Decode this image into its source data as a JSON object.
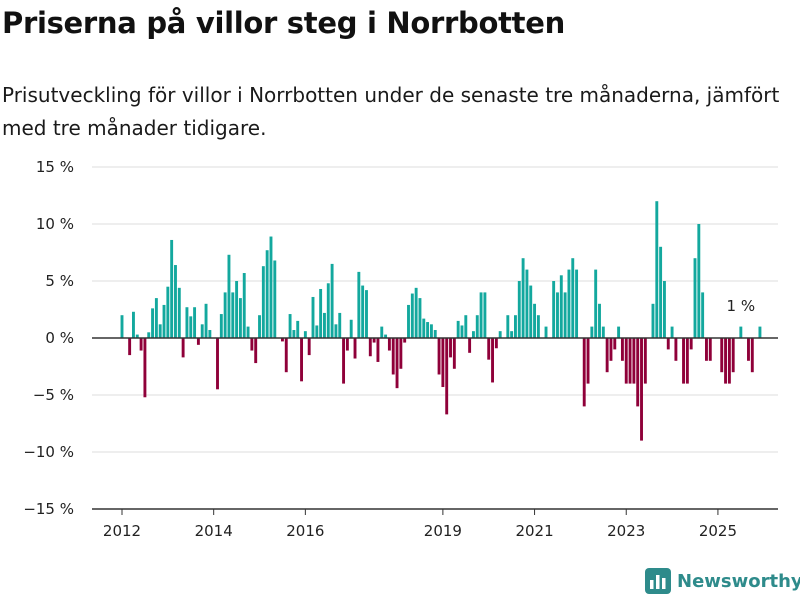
{
  "title": "Priserna på villor steg i Norrbotten",
  "subtitle": "Prisutveckling för villor i Norrbotten under de senaste tre månaderna, jämfört med tre månader tidigare.",
  "colors": {
    "positive": "#13a89e",
    "negative": "#8f0039",
    "axis": "#333333",
    "grid": "#dddddd",
    "brand": "#2e8b8b"
  },
  "brand": {
    "name": "Newsworthy",
    "icon": "bar-chart-icon"
  },
  "chart_data": {
    "type": "bar",
    "ylim": [
      -15,
      15
    ],
    "y_ticks": [
      15,
      10,
      5,
      0,
      -5,
      -10,
      -15
    ],
    "y_tick_labels": [
      "15 %",
      "10 %",
      "5 %",
      "0 %",
      "−5 %",
      "−10 %",
      "−15 %"
    ],
    "x_ticks": [
      "2012",
      "2014",
      "2016",
      "2019",
      "2021",
      "2023",
      "2025"
    ],
    "start": "2012-01",
    "x_tick_positions": [
      "2012-01",
      "2014-01",
      "2016-01",
      "2019-01",
      "2021-01",
      "2023-01",
      "2025-01"
    ],
    "grid": true,
    "annotation": {
      "text": "1 %",
      "at": "2025-07"
    },
    "values": [
      2,
      0,
      -1.5,
      2.3,
      0.3,
      -1.1,
      -5.2,
      0.5,
      2.6,
      3.5,
      1.2,
      2.9,
      4.5,
      8.6,
      6.4,
      4.4,
      -1.7,
      2.7,
      1.9,
      2.7,
      -0.6,
      1.2,
      3,
      0.7,
      0,
      -4.5,
      2.1,
      4,
      7.3,
      4,
      5,
      3.5,
      5.7,
      1,
      -1.1,
      -2.2,
      2,
      6.3,
      7.7,
      8.9,
      6.8,
      0,
      -0.3,
      -3,
      2.1,
      0.7,
      1.5,
      -3.8,
      0.6,
      -1.5,
      3.6,
      1.1,
      4.3,
      2.2,
      4.8,
      6.5,
      1.2,
      2.2,
      -4,
      -1.1,
      1.6,
      -1.8,
      5.8,
      4.6,
      4.2,
      -1.6,
      -0.4,
      -2.1,
      1,
      0.3,
      -1.1,
      -3.2,
      -4.4,
      -2.7,
      -0.4,
      2.9,
      3.9,
      4.4,
      3.5,
      1.7,
      1.4,
      1.2,
      0.7,
      -3.2,
      -4.3,
      -6.7,
      -1.7,
      -2.7,
      1.5,
      1.1,
      2,
      -1.3,
      0.6,
      2,
      4,
      4,
      -1.9,
      -3.9,
      -0.9,
      0.6,
      0,
      2,
      0.6,
      2,
      5,
      7,
      6,
      4.6,
      3,
      2,
      0,
      1,
      0,
      5,
      4,
      5.5,
      4,
      6,
      7,
      6,
      0,
      -6,
      -4,
      1,
      6,
      3,
      1,
      -3,
      -2,
      -1,
      1,
      -2,
      -4,
      -4,
      -4,
      -6,
      -9,
      -4,
      0,
      3,
      12,
      8,
      5,
      -1,
      1,
      -2,
      0,
      -4,
      -4,
      -1,
      7,
      10,
      4,
      -2,
      -2,
      0,
      0,
      -3,
      -4,
      -4,
      -3,
      0,
      1,
      0,
      -2,
      -3,
      0,
      1
    ]
  }
}
